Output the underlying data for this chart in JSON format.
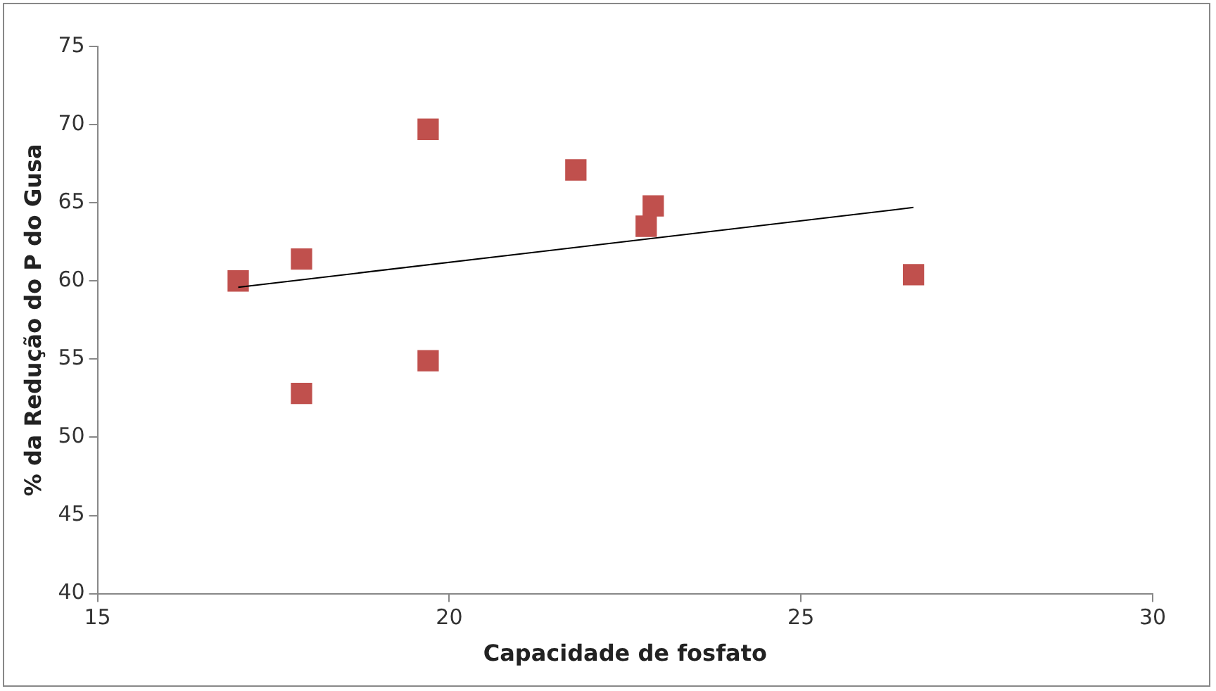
{
  "chart_data": {
    "type": "scatter",
    "xlabel": "Capacidade de fosfato",
    "ylabel": "% da Redução do P do Gusa",
    "xlim": [
      15,
      30
    ],
    "xticks": [
      15,
      20,
      25,
      30
    ],
    "ylim": [
      40,
      75
    ],
    "yticks": [
      40,
      45,
      50,
      55,
      60,
      65,
      70,
      75
    ],
    "grid": false,
    "legend": false,
    "marker": "square",
    "series": [
      {
        "type": "scatter",
        "color": "#c0504d",
        "x": [
          17.0,
          17.9,
          17.9,
          19.7,
          19.7,
          21.8,
          22.8,
          22.9,
          26.6
        ],
        "values": [
          60.0,
          61.4,
          52.8,
          69.7,
          54.9,
          67.1,
          63.5,
          64.8,
          60.4
        ]
      },
      {
        "type": "line",
        "color": "#000000",
        "marker": "none",
        "line_style": "solid",
        "x": [
          17.0,
          26.6
        ],
        "values": [
          59.6,
          64.7
        ]
      }
    ]
  }
}
